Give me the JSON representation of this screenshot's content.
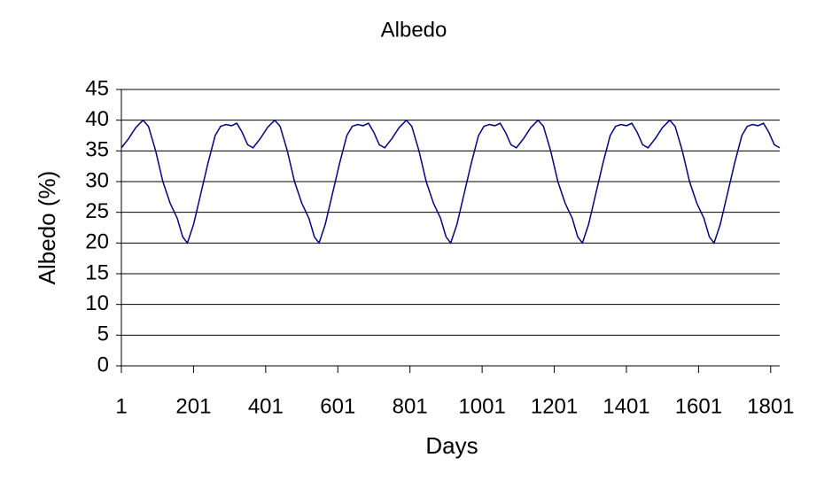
{
  "chart_data": {
    "type": "line",
    "title": "Albedo",
    "x_label": "Days",
    "y_label": "Albedo (%)",
    "x": [
      1,
      21,
      41,
      61,
      76,
      96,
      116,
      136,
      156,
      171,
      184,
      201,
      221,
      241,
      261,
      276,
      291,
      306,
      321,
      336,
      351,
      366,
      386,
      406,
      426,
      441,
      461,
      481,
      501,
      521,
      536,
      549,
      566,
      586,
      606,
      626,
      641,
      656,
      671,
      686,
      701,
      716,
      731,
      751,
      771,
      791,
      806,
      826,
      846,
      866,
      886,
      901,
      914,
      931,
      951,
      971,
      991,
      1006,
      1021,
      1036,
      1051,
      1066,
      1081,
      1096,
      1116,
      1136,
      1156,
      1171,
      1191,
      1211,
      1231,
      1251,
      1266,
      1279,
      1296,
      1316,
      1336,
      1356,
      1371,
      1386,
      1401,
      1416,
      1431,
      1446,
      1461,
      1481,
      1501,
      1521,
      1536,
      1556,
      1576,
      1596,
      1616,
      1631,
      1644,
      1661,
      1681,
      1701,
      1721,
      1736,
      1751,
      1766,
      1781,
      1796,
      1811,
      1826
    ],
    "series": [
      {
        "name": "Albedo",
        "color": "#000080",
        "values": [
          35.5,
          37,
          38.8,
          40,
          39,
          35,
          30,
          26.5,
          24,
          21,
          20,
          23,
          28,
          33,
          37.5,
          39,
          39.3,
          39.1,
          39.5,
          38,
          36,
          35.5,
          37,
          38.8,
          40,
          39,
          35,
          30,
          26.5,
          24,
          21,
          20,
          23,
          28,
          33,
          37.5,
          39,
          39.3,
          39.1,
          39.5,
          38,
          36,
          35.5,
          37,
          38.8,
          40,
          39,
          35,
          30,
          26.5,
          24,
          21,
          20,
          23,
          28,
          33,
          37.5,
          39,
          39.3,
          39.1,
          39.5,
          38,
          36,
          35.5,
          37,
          38.8,
          40,
          39,
          35,
          30,
          26.5,
          24,
          21,
          20,
          23,
          28,
          33,
          37.5,
          39,
          39.3,
          39.1,
          39.5,
          38,
          36,
          35.5,
          37,
          38.8,
          40,
          39,
          35,
          30,
          26.5,
          24,
          21,
          20,
          23,
          28,
          33,
          37.5,
          39,
          39.3,
          39.1,
          39.5,
          38,
          36,
          35.5
        ]
      }
    ],
    "xlim": [
      1,
      1826
    ],
    "xticks": [
      1,
      201,
      401,
      601,
      801,
      1001,
      1201,
      1401,
      1601,
      1801
    ],
    "ylim": [
      0,
      45
    ],
    "yticks": [
      0,
      5,
      10,
      15,
      20,
      25,
      30,
      35,
      40,
      45
    ],
    "grid": true
  }
}
